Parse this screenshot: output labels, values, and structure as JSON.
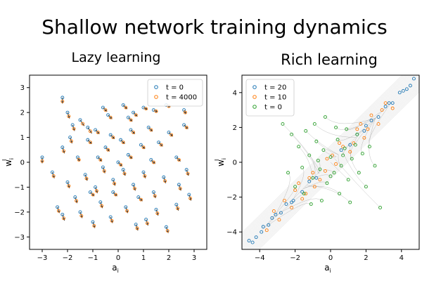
{
  "figure": {
    "title": "Shallow network training dynamics"
  },
  "chart_data": [
    {
      "type": "scatter",
      "title": "Lazy learning",
      "xlabel": "a",
      "xlabel_sub": "i",
      "ylabel": "w",
      "ylabel_sup": "I",
      "ylabel_sub": "i",
      "xlim": [
        -3.5,
        3.5
      ],
      "ylim": [
        -3.5,
        3.5
      ],
      "xticks": [
        -3,
        -2,
        -1,
        0,
        1,
        2,
        3
      ],
      "yticks": [
        -3,
        -2,
        -1,
        0,
        1,
        2,
        3
      ],
      "grid": false,
      "legend_position": "top-right",
      "series": [
        {
          "name": "t = 0",
          "color": "#1f77b4",
          "marker": "hollow-circle",
          "points": [
            [
              -2.2,
              2.6
            ],
            [
              -2.0,
              2.0
            ],
            [
              -1.8,
              1.5
            ],
            [
              -1.5,
              1.7
            ],
            [
              -1.2,
              1.4
            ],
            [
              -0.6,
              2.2
            ],
            [
              -0.4,
              1.9
            ],
            [
              0.2,
              2.3
            ],
            [
              0.4,
              1.8
            ],
            [
              0.6,
              2.0
            ],
            [
              1.0,
              2.2
            ],
            [
              1.4,
              2.1
            ],
            [
              1.9,
              2.3
            ],
            [
              2.6,
              2.1
            ],
            [
              -3.0,
              0.2
            ],
            [
              -2.2,
              0.6
            ],
            [
              -1.9,
              1.0
            ],
            [
              -1.6,
              0.2
            ],
            [
              -1.2,
              0.9
            ],
            [
              -0.9,
              1.3
            ],
            [
              -0.5,
              0.6
            ],
            [
              -0.3,
              1.1
            ],
            [
              0.1,
              0.9
            ],
            [
              0.5,
              1.3
            ],
            [
              0.9,
              0.7
            ],
            [
              1.2,
              1.4
            ],
            [
              1.6,
              0.8
            ],
            [
              2.0,
              1.2
            ],
            [
              2.3,
              0.2
            ],
            [
              2.6,
              1.5
            ],
            [
              -2.6,
              -0.4
            ],
            [
              -2.0,
              -0.8
            ],
            [
              -1.7,
              -1.4
            ],
            [
              -1.3,
              -0.5
            ],
            [
              -0.9,
              -1.0
            ],
            [
              -0.6,
              -0.2
            ],
            [
              -0.2,
              -0.7
            ],
            [
              0.2,
              -0.3
            ],
            [
              0.6,
              -0.9
            ],
            [
              1.0,
              -0.4
            ],
            [
              1.4,
              -1.2
            ],
            [
              1.8,
              -0.6
            ],
            [
              2.4,
              -0.9
            ],
            [
              2.7,
              -0.3
            ],
            [
              -2.4,
              -1.8
            ],
            [
              -2.2,
              -2.1
            ],
            [
              -1.5,
              -2.0
            ],
            [
              -1.0,
              -2.4
            ],
            [
              -0.7,
              -1.6
            ],
            [
              -0.3,
              -2.2
            ],
            [
              0.3,
              -1.8
            ],
            [
              0.7,
              -2.5
            ],
            [
              1.1,
              -2.3
            ],
            [
              1.5,
              -1.9
            ],
            [
              1.9,
              -2.6
            ],
            [
              2.3,
              -1.7
            ],
            [
              2.8,
              -1.3
            ],
            [
              -0.8,
              0.2
            ],
            [
              0.0,
              0.0
            ],
            [
              0.4,
              0.3
            ],
            [
              -0.2,
              -1.2
            ],
            [
              0.8,
              -1.4
            ],
            [
              -1.1,
              -1.2
            ],
            [
              1.3,
              0.1
            ]
          ]
        },
        {
          "name": "t = 4000",
          "color": "#ff7f0e",
          "marker": "hollow-circle",
          "points": [
            [
              -2.2,
              2.45
            ],
            [
              -1.95,
              1.85
            ],
            [
              -1.75,
              1.35
            ],
            [
              -1.4,
              1.55
            ],
            [
              -1.1,
              1.25
            ],
            [
              -0.5,
              2.1
            ],
            [
              -0.3,
              1.8
            ],
            [
              0.3,
              2.2
            ],
            [
              0.5,
              1.7
            ],
            [
              0.7,
              1.9
            ],
            [
              1.1,
              2.15
            ],
            [
              1.5,
              2.05
            ],
            [
              2.0,
              2.25
            ],
            [
              2.65,
              2.0
            ],
            [
              -3.0,
              0.05
            ],
            [
              -2.15,
              0.45
            ],
            [
              -1.85,
              0.85
            ],
            [
              -1.55,
              0.1
            ],
            [
              -1.1,
              0.8
            ],
            [
              -0.8,
              1.2
            ],
            [
              -0.4,
              0.5
            ],
            [
              -0.2,
              1.0
            ],
            [
              0.2,
              0.8
            ],
            [
              0.6,
              1.2
            ],
            [
              1.0,
              0.6
            ],
            [
              1.3,
              1.3
            ],
            [
              1.7,
              0.7
            ],
            [
              2.1,
              1.1
            ],
            [
              2.4,
              0.1
            ],
            [
              2.7,
              1.4
            ],
            [
              -2.55,
              -0.55
            ],
            [
              -1.95,
              -0.95
            ],
            [
              -1.65,
              -1.55
            ],
            [
              -1.25,
              -0.65
            ],
            [
              -0.85,
              -1.15
            ],
            [
              -0.55,
              -0.35
            ],
            [
              -0.15,
              -0.85
            ],
            [
              0.25,
              -0.45
            ],
            [
              0.65,
              -1.05
            ],
            [
              1.05,
              -0.55
            ],
            [
              1.45,
              -1.35
            ],
            [
              1.85,
              -0.75
            ],
            [
              2.45,
              -1.05
            ],
            [
              2.75,
              -0.45
            ],
            [
              -2.35,
              -1.95
            ],
            [
              -2.15,
              -2.25
            ],
            [
              -1.45,
              -2.15
            ],
            [
              -0.95,
              -2.55
            ],
            [
              -0.65,
              -1.75
            ],
            [
              -0.25,
              -2.35
            ],
            [
              0.35,
              -1.95
            ],
            [
              0.75,
              -2.65
            ],
            [
              1.15,
              -2.45
            ],
            [
              1.55,
              -2.05
            ],
            [
              1.95,
              -2.75
            ],
            [
              2.35,
              -1.85
            ],
            [
              2.85,
              -1.45
            ],
            [
              -0.7,
              0.1
            ],
            [
              0.1,
              -0.1
            ],
            [
              0.5,
              0.2
            ],
            [
              -0.1,
              -1.3
            ],
            [
              0.9,
              -1.5
            ],
            [
              -1.0,
              -1.3
            ],
            [
              1.4,
              0.0
            ]
          ]
        }
      ]
    },
    {
      "type": "scatter",
      "title": "Rich learning",
      "xlabel": "a",
      "xlabel_sub": "i",
      "ylabel": "w",
      "ylabel_sup": "I",
      "ylabel_sub": "i",
      "xlim": [
        -5,
        5
      ],
      "ylim": [
        -5,
        5
      ],
      "xticks": [
        -4,
        -2,
        0,
        2,
        4
      ],
      "yticks": [
        -4,
        -2,
        0,
        2,
        4
      ],
      "grid": false,
      "legend_position": "top-left",
      "series": [
        {
          "name": "t = 20",
          "color": "#1f77b4",
          "marker": "hollow-circle",
          "points": [
            [
              -4.6,
              -4.5
            ],
            [
              -4.2,
              -4.3
            ],
            [
              -3.8,
              -3.7
            ],
            [
              -3.5,
              -3.6
            ],
            [
              -3.1,
              -3.0
            ],
            [
              -2.8,
              -2.9
            ],
            [
              -2.5,
              -2.4
            ],
            [
              -2.1,
              -2.2
            ],
            [
              -1.6,
              -1.7
            ],
            [
              -1.2,
              -1.1
            ],
            [
              -0.8,
              -0.9
            ],
            [
              0.6,
              0.7
            ],
            [
              1.1,
              1.0
            ],
            [
              1.5,
              1.6
            ],
            [
              1.9,
              1.8
            ],
            [
              2.3,
              2.4
            ],
            [
              2.7,
              2.6
            ],
            [
              3.1,
              3.2
            ],
            [
              3.5,
              3.4
            ],
            [
              3.9,
              4.0
            ],
            [
              4.3,
              4.2
            ],
            [
              4.7,
              4.8
            ],
            [
              -4.4,
              -4.6
            ],
            [
              -3.3,
              -3.2
            ],
            [
              -2.2,
              -2.3
            ],
            [
              2.0,
              2.1
            ],
            [
              3.3,
              3.4
            ],
            [
              4.5,
              4.4
            ],
            [
              -3.9,
              -4.0
            ],
            [
              4.1,
              4.1
            ]
          ]
        },
        {
          "name": "t = 10",
          "color": "#ff7f0e",
          "marker": "hollow-circle",
          "points": [
            [
              -3.2,
              -2.8
            ],
            [
              -2.6,
              -2.2
            ],
            [
              -2.2,
              -2.6
            ],
            [
              -1.8,
              -1.2
            ],
            [
              -1.4,
              -1.8
            ],
            [
              -1.0,
              -0.6
            ],
            [
              -0.6,
              -1.0
            ],
            [
              -0.2,
              0.2
            ],
            [
              0.3,
              -0.1
            ],
            [
              0.7,
              0.9
            ],
            [
              1.1,
              0.6
            ],
            [
              1.5,
              1.9
            ],
            [
              1.9,
              1.4
            ],
            [
              2.3,
              2.7
            ],
            [
              2.7,
              2.2
            ],
            [
              3.1,
              3.4
            ],
            [
              -3.6,
              -3.9
            ],
            [
              -2.9,
              -3.3
            ],
            [
              -1.6,
              -2.1
            ],
            [
              -0.9,
              -1.4
            ],
            [
              0.5,
              1.1
            ],
            [
              1.3,
              1.1
            ],
            [
              2.1,
              1.9
            ],
            [
              2.9,
              3.0
            ],
            [
              3.5,
              3.1
            ],
            [
              -0.3,
              -0.5
            ],
            [
              0.1,
              0.4
            ],
            [
              -2.0,
              -1.6
            ],
            [
              1.7,
              2.2
            ],
            [
              -1.2,
              -0.9
            ]
          ]
        },
        {
          "name": "t = 0",
          "color": "#2ca02c",
          "marker": "hollow-circle",
          "points": [
            [
              -2.2,
              1.6
            ],
            [
              -1.8,
              0.9
            ],
            [
              -1.6,
              -0.3
            ],
            [
              -1.4,
              1.8
            ],
            [
              -1.2,
              0.4
            ],
            [
              -1.0,
              -0.9
            ],
            [
              -0.8,
              1.2
            ],
            [
              -0.6,
              -0.4
            ],
            [
              -0.4,
              0.7
            ],
            [
              -0.2,
              -1.2
            ],
            [
              0.0,
              0.3
            ],
            [
              0.2,
              -0.6
            ],
            [
              0.4,
              1.3
            ],
            [
              0.6,
              -0.2
            ],
            [
              0.8,
              0.8
            ],
            [
              1.0,
              -1.0
            ],
            [
              1.2,
              0.2
            ],
            [
              1.4,
              1.0
            ],
            [
              1.6,
              -0.6
            ],
            [
              1.8,
              0.5
            ],
            [
              2.0,
              -1.4
            ],
            [
              2.2,
              0.9
            ],
            [
              -2.0,
              -1.4
            ],
            [
              -1.5,
              -1.8
            ],
            [
              -0.9,
              2.2
            ],
            [
              -0.3,
              2.6
            ],
            [
              0.3,
              2.0
            ],
            [
              0.9,
              1.9
            ],
            [
              1.5,
              1.6
            ],
            [
              -2.4,
              -0.6
            ],
            [
              2.5,
              -0.2
            ],
            [
              -0.5,
              -2.2
            ],
            [
              0.5,
              -1.8
            ],
            [
              1.1,
              -2.3
            ],
            [
              -1.1,
              -2.4
            ],
            [
              2.8,
              -2.6
            ],
            [
              -2.7,
              2.2
            ],
            [
              0.0,
              -0.8
            ],
            [
              -0.7,
              0.1
            ],
            [
              0.7,
              0.4
            ]
          ]
        }
      ]
    }
  ]
}
